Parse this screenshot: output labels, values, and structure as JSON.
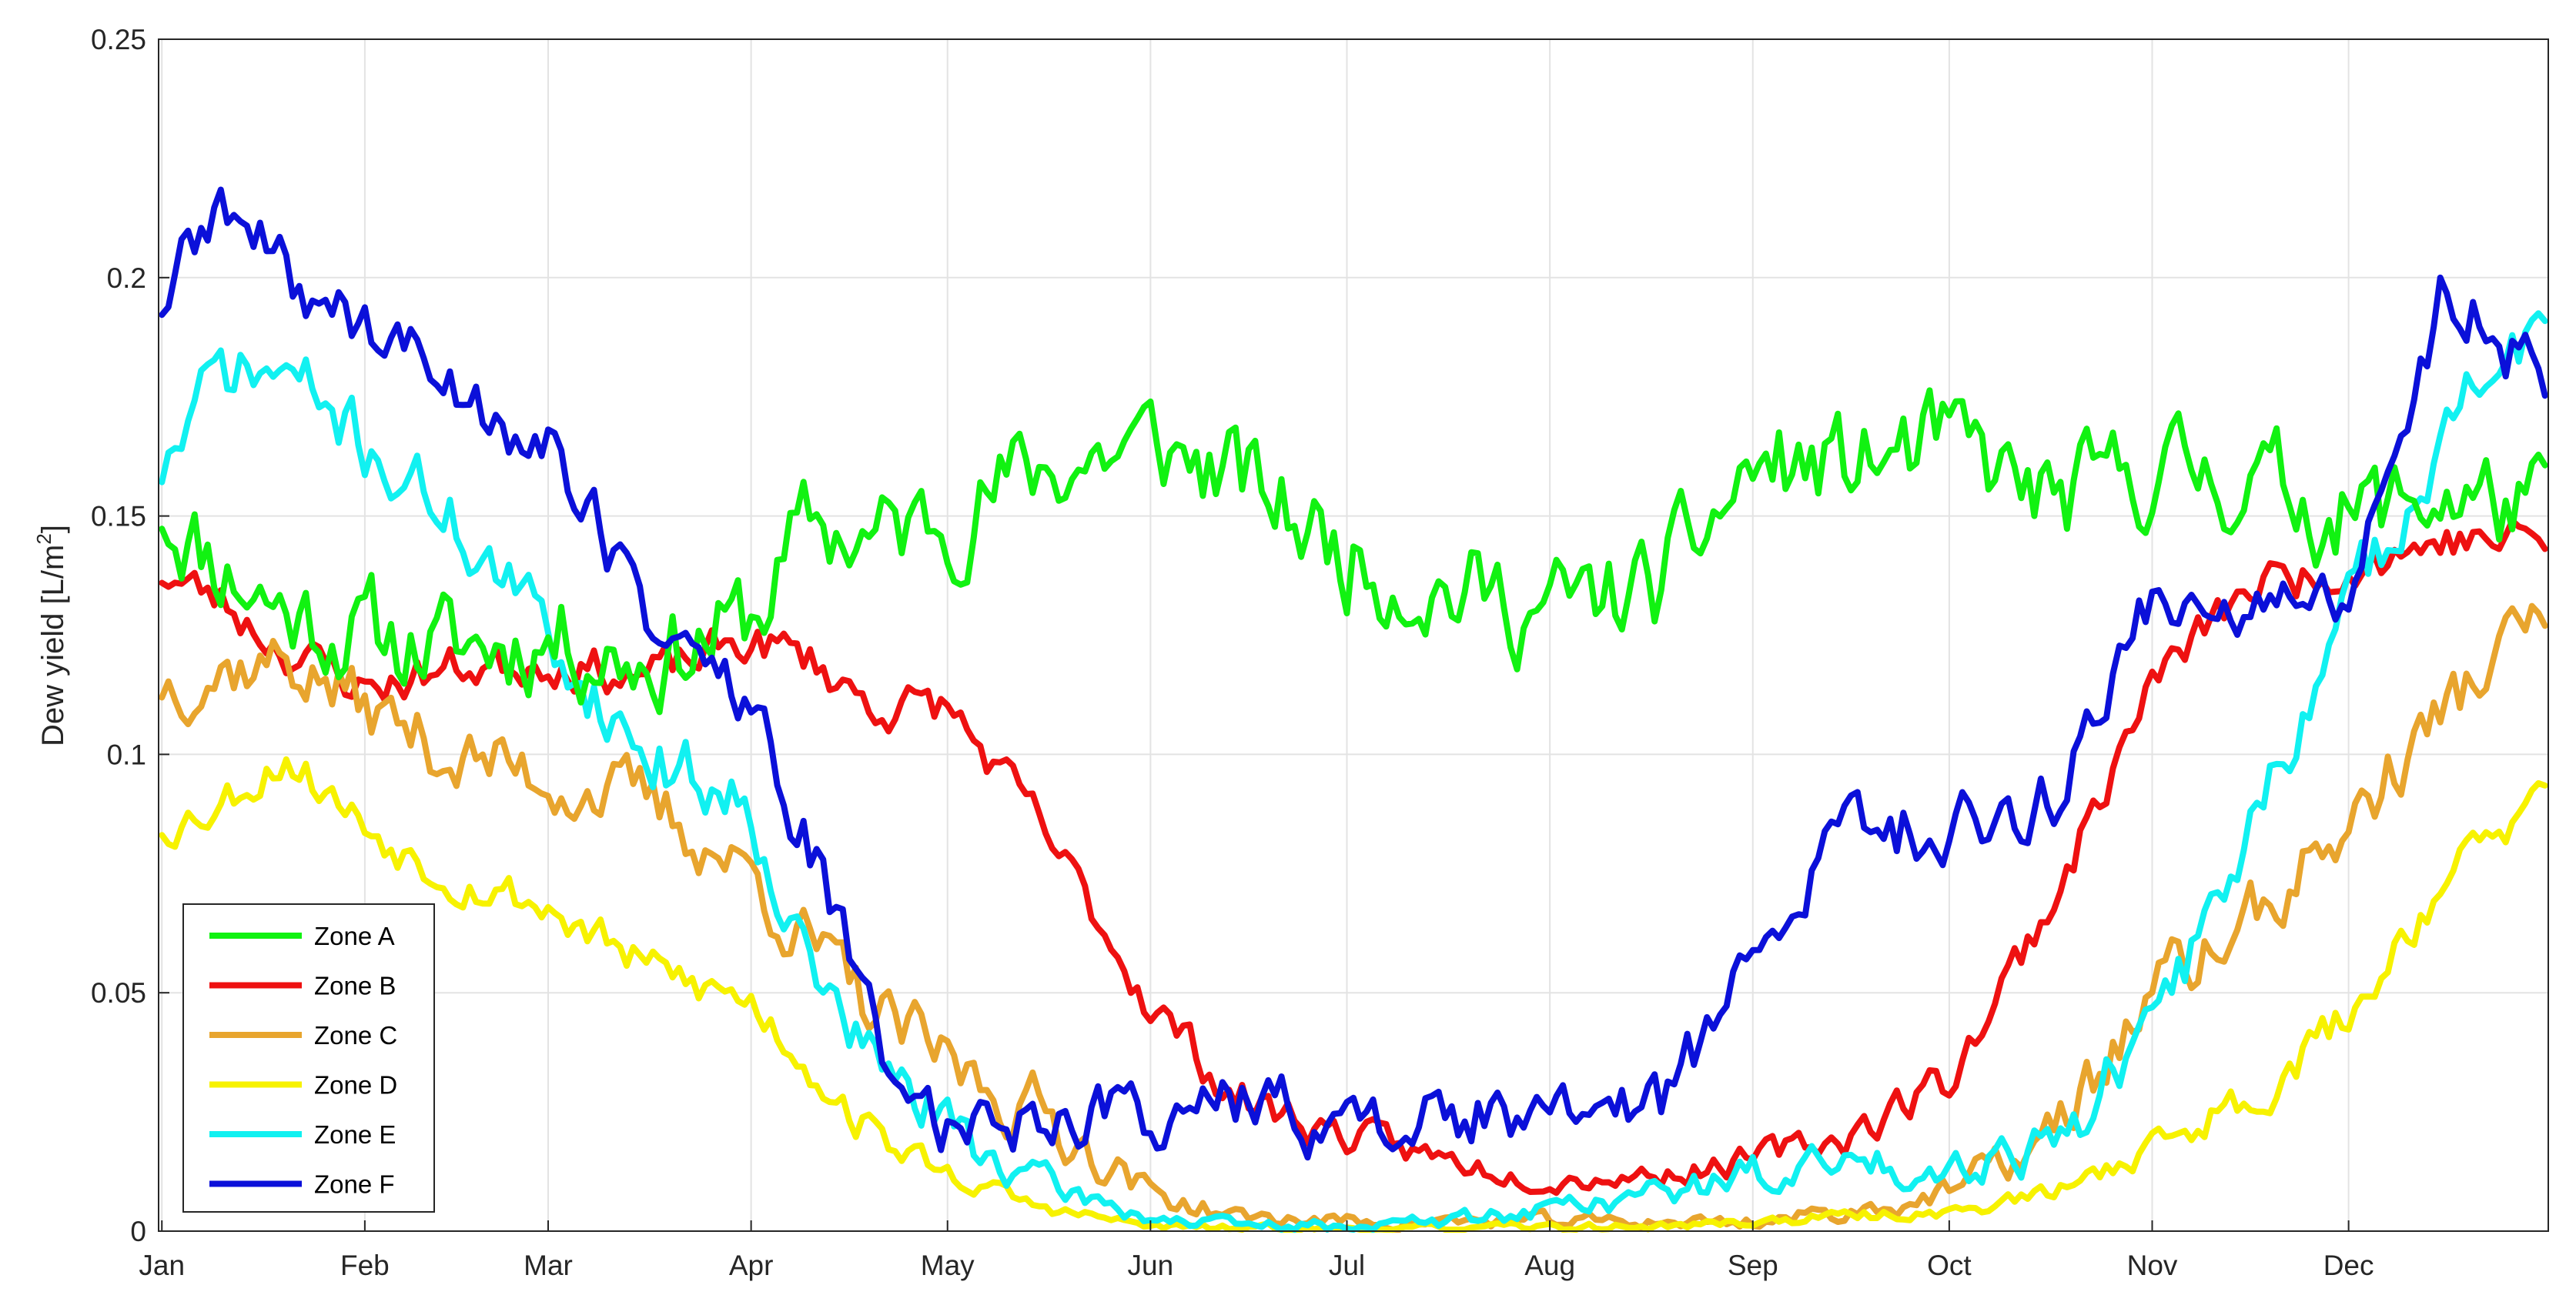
{
  "chart_data": {
    "type": "line",
    "title": "",
    "xlabel": "",
    "ylabel": "Dew yield [L/m",
    "ylabel_sup": "2",
    "ylabel_end": "]",
    "x_ticks": [
      "Jan",
      "Feb",
      "Mar",
      "Apr",
      "May",
      "Jun",
      "Jul",
      "Aug",
      "Sep",
      "Oct",
      "Nov",
      "Dec"
    ],
    "x_tick_days": [
      1,
      32,
      60,
      91,
      121,
      152,
      182,
      213,
      244,
      274,
      305,
      335
    ],
    "xlim": [
      0.5,
      365.5
    ],
    "y_ticks": [
      "0",
      "0.05",
      "0.1",
      "0.15",
      "0.2",
      "0.25"
    ],
    "y_tick_values": [
      0,
      0.05,
      0.1,
      0.15,
      0.2,
      0.25
    ],
    "ylim": [
      0,
      0.25
    ],
    "grid": true,
    "legend_position": "bottom-left",
    "x_unit": "day of year",
    "x_anchor_days": [
      1,
      10,
      20,
      32,
      45,
      60,
      75,
      91,
      100,
      110,
      121,
      135,
      152,
      165,
      182,
      197,
      213,
      230,
      244,
      258,
      274,
      290,
      305,
      320,
      335,
      350,
      365
    ],
    "series": [
      {
        "name": "Zone A",
        "color": "#11f211",
        "noise": 0.0125,
        "seed": 11,
        "values": [
          0.152,
          0.14,
          0.13,
          0.125,
          0.122,
          0.125,
          0.12,
          0.128,
          0.148,
          0.145,
          0.15,
          0.16,
          0.165,
          0.158,
          0.142,
          0.135,
          0.13,
          0.135,
          0.16,
          0.16,
          0.165,
          0.152,
          0.16,
          0.158,
          0.15,
          0.155,
          0.15
        ]
      },
      {
        "name": "Zone B",
        "color": "#ee1111",
        "noise": 0.0055,
        "seed": 23,
        "values": [
          0.138,
          0.132,
          0.122,
          0.114,
          0.118,
          0.12,
          0.116,
          0.124,
          0.12,
          0.11,
          0.11,
          0.085,
          0.048,
          0.028,
          0.02,
          0.015,
          0.011,
          0.012,
          0.015,
          0.02,
          0.032,
          0.07,
          0.115,
          0.135,
          0.14,
          0.145,
          0.145
        ]
      },
      {
        "name": "Zone C",
        "color": "#e8a52e",
        "noise": 0.0085,
        "seed": 37,
        "values": [
          0.115,
          0.118,
          0.12,
          0.11,
          0.1,
          0.095,
          0.09,
          0.075,
          0.06,
          0.045,
          0.035,
          0.025,
          0.008,
          0.003,
          0.002,
          0.002,
          0.002,
          0.002,
          0.002,
          0.004,
          0.008,
          0.02,
          0.05,
          0.065,
          0.085,
          0.11,
          0.13
        ]
      },
      {
        "name": "Zone D",
        "color": "#f7f200",
        "noise": 0.0055,
        "seed": 53,
        "values": [
          0.085,
          0.09,
          0.1,
          0.085,
          0.075,
          0.068,
          0.055,
          0.048,
          0.035,
          0.02,
          0.012,
          0.005,
          0.001,
          0.0005,
          0.0005,
          0.0005,
          0.0008,
          0.001,
          0.002,
          0.003,
          0.004,
          0.008,
          0.018,
          0.028,
          0.045,
          0.075,
          0.09
        ]
      },
      {
        "name": "Zone E",
        "color": "#11f1f1",
        "noise": 0.0085,
        "seed": 71,
        "values": [
          0.16,
          0.18,
          0.18,
          0.165,
          0.15,
          0.125,
          0.1,
          0.09,
          0.055,
          0.035,
          0.022,
          0.01,
          0.003,
          0.001,
          0.001,
          0.002,
          0.005,
          0.008,
          0.012,
          0.014,
          0.014,
          0.02,
          0.04,
          0.085,
          0.13,
          0.17,
          0.19
        ]
      },
      {
        "name": "Zone F",
        "color": "#0b10d9",
        "noise": 0.0085,
        "seed": 89,
        "values": [
          0.195,
          0.215,
          0.2,
          0.19,
          0.178,
          0.165,
          0.13,
          0.11,
          0.08,
          0.04,
          0.022,
          0.025,
          0.025,
          0.027,
          0.022,
          0.025,
          0.022,
          0.028,
          0.055,
          0.085,
          0.085,
          0.09,
          0.135,
          0.13,
          0.13,
          0.2,
          0.178
        ]
      }
    ]
  }
}
